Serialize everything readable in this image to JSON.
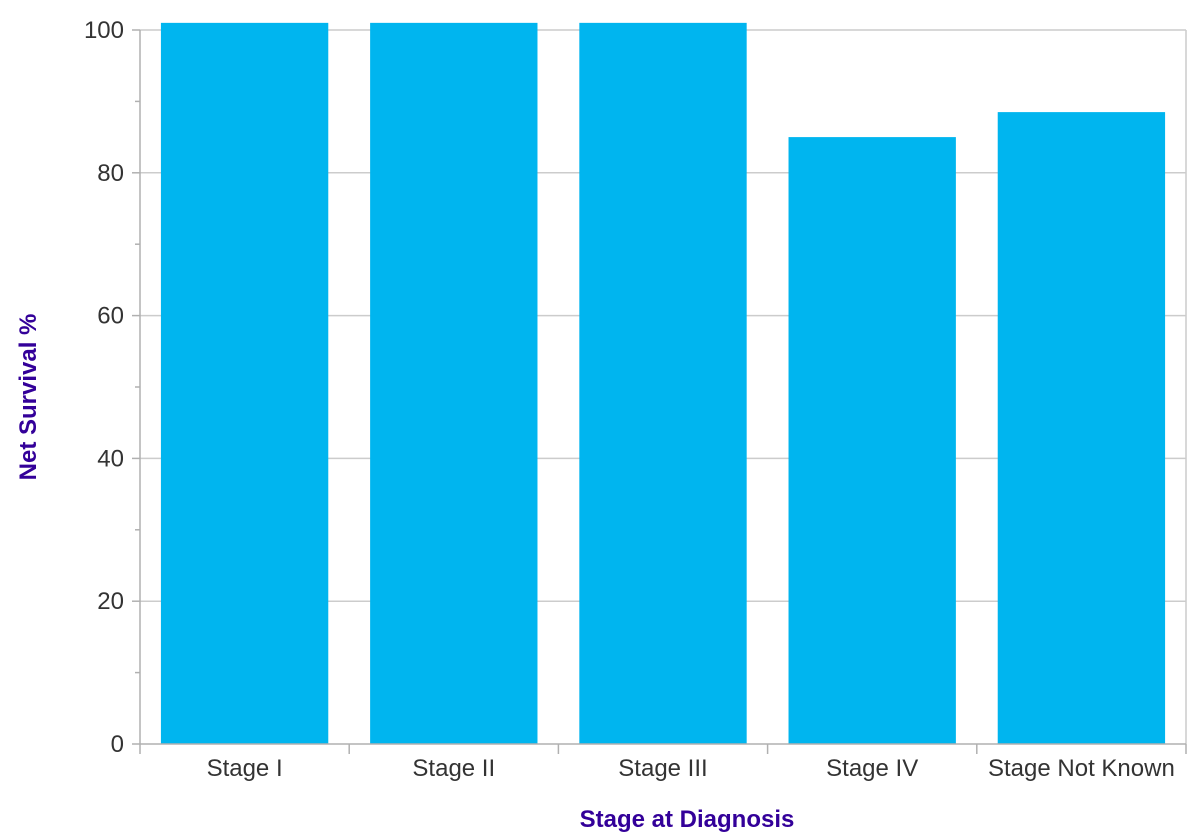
{
  "chart_data": {
    "type": "bar",
    "title": "",
    "xlabel": "Stage at Diagnosis",
    "ylabel": "Net Survival %",
    "categories": [
      "Stage I",
      "Stage II",
      "Stage III",
      "Stage IV",
      "Stage Not Known"
    ],
    "values": [
      101,
      101,
      101,
      85,
      88.5
    ],
    "ylim": [
      0,
      100
    ],
    "yticks": [
      0,
      20,
      40,
      60,
      80,
      100
    ],
    "grid": true,
    "legend": "none"
  },
  "colors": {
    "bar": "#00b5ef",
    "axis_title": "#330099",
    "grid": "#cccccc",
    "axis": "#b0b0b0",
    "tick_text": "#333333"
  }
}
